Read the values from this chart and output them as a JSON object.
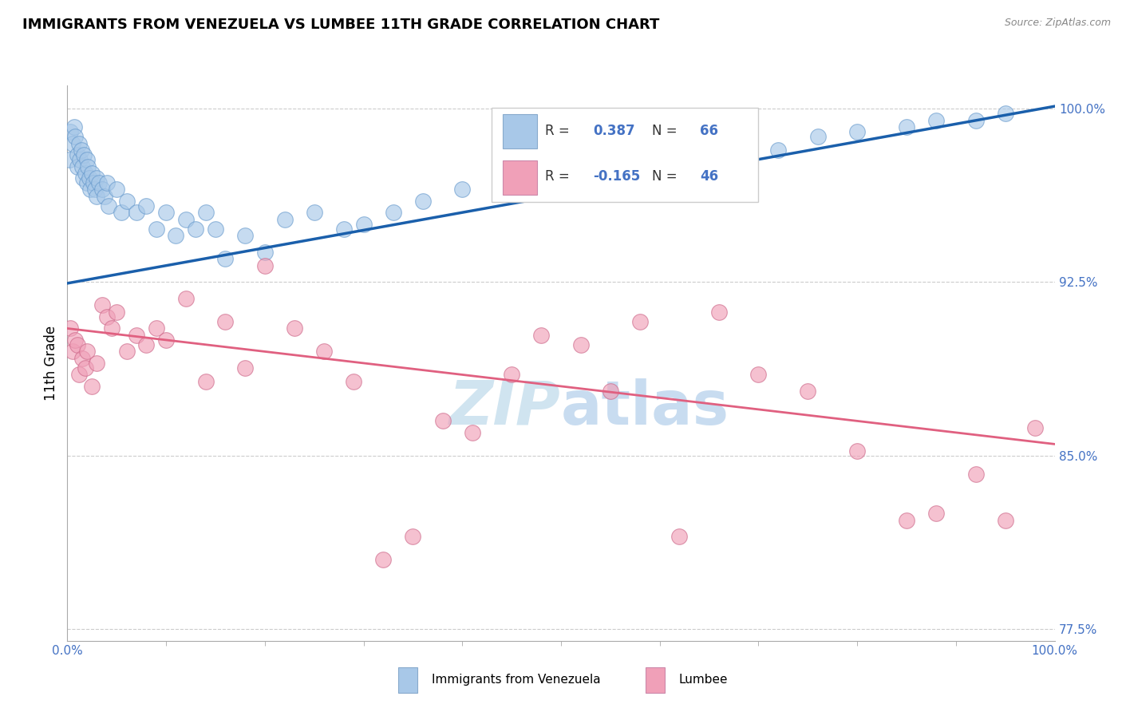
{
  "title": "IMMIGRANTS FROM VENEZUELA VS LUMBEE 11TH GRADE CORRELATION CHART",
  "source": "Source: ZipAtlas.com",
  "ylabel": "11th Grade",
  "blue_color": "#A8C8E8",
  "pink_color": "#F0A0B8",
  "blue_line_color": "#1A5FAB",
  "pink_line_color": "#E06080",
  "watermark_color": "#D0E4F0",
  "legend_blue_r_val": "0.387",
  "legend_blue_n_val": "66",
  "legend_pink_r_val": "-0.165",
  "legend_pink_n_val": "46",
  "tick_color": "#4472C4",
  "y_ticks": [
    0.775,
    0.85,
    0.925,
    1.0
  ],
  "y_tick_labels": [
    "77.5%",
    "85.0%",
    "92.5%",
    "100.0%"
  ],
  "blue_x": [
    0.2,
    0.3,
    0.5,
    0.7,
    0.8,
    1.0,
    1.0,
    1.2,
    1.3,
    1.4,
    1.5,
    1.6,
    1.7,
    1.8,
    2.0,
    2.0,
    2.1,
    2.2,
    2.3,
    2.5,
    2.6,
    2.8,
    3.0,
    3.0,
    3.2,
    3.5,
    3.8,
    4.0,
    4.2,
    5.0,
    5.5,
    6.0,
    7.0,
    8.0,
    9.0,
    10.0,
    11.0,
    12.0,
    13.0,
    14.0,
    15.0,
    16.0,
    18.0,
    20.0,
    22.0,
    25.0,
    28.0,
    30.0,
    33.0,
    36.0,
    40.0,
    44.0,
    48.0,
    52.0,
    55.0,
    58.0,
    62.0,
    65.0,
    68.0,
    72.0,
    76.0,
    80.0,
    85.0,
    88.0,
    92.0,
    95.0
  ],
  "blue_y": [
    97.8,
    99.0,
    98.5,
    99.2,
    98.8,
    98.0,
    97.5,
    98.5,
    97.8,
    98.2,
    97.5,
    97.0,
    98.0,
    97.2,
    97.8,
    96.8,
    97.5,
    97.0,
    96.5,
    97.2,
    96.8,
    96.5,
    97.0,
    96.2,
    96.8,
    96.5,
    96.2,
    96.8,
    95.8,
    96.5,
    95.5,
    96.0,
    95.5,
    95.8,
    94.8,
    95.5,
    94.5,
    95.2,
    94.8,
    95.5,
    94.8,
    93.5,
    94.5,
    93.8,
    95.2,
    95.5,
    94.8,
    95.0,
    95.5,
    96.0,
    96.5,
    97.0,
    96.5,
    97.2,
    97.5,
    97.0,
    97.8,
    98.0,
    98.5,
    98.2,
    98.8,
    99.0,
    99.2,
    99.5,
    99.5,
    99.8
  ],
  "pink_x": [
    0.3,
    0.5,
    0.8,
    1.0,
    1.2,
    1.5,
    1.8,
    2.0,
    2.5,
    3.0,
    3.5,
    4.0,
    4.5,
    5.0,
    6.0,
    7.0,
    8.0,
    9.0,
    10.0,
    12.0,
    14.0,
    16.0,
    18.0,
    20.0,
    23.0,
    26.0,
    29.0,
    32.0,
    35.0,
    38.0,
    41.0,
    45.0,
    48.0,
    52.0,
    55.0,
    58.0,
    62.0,
    66.0,
    70.0,
    75.0,
    80.0,
    85.0,
    88.0,
    92.0,
    95.0,
    98.0
  ],
  "pink_y": [
    90.5,
    89.5,
    90.0,
    89.8,
    88.5,
    89.2,
    88.8,
    89.5,
    88.0,
    89.0,
    91.5,
    91.0,
    90.5,
    91.2,
    89.5,
    90.2,
    89.8,
    90.5,
    90.0,
    91.8,
    88.2,
    90.8,
    88.8,
    93.2,
    90.5,
    89.5,
    88.2,
    80.5,
    81.5,
    86.5,
    86.0,
    88.5,
    90.2,
    89.8,
    87.8,
    90.8,
    81.5,
    91.2,
    88.5,
    87.8,
    85.2,
    82.2,
    82.5,
    84.2,
    82.2,
    86.2
  ]
}
